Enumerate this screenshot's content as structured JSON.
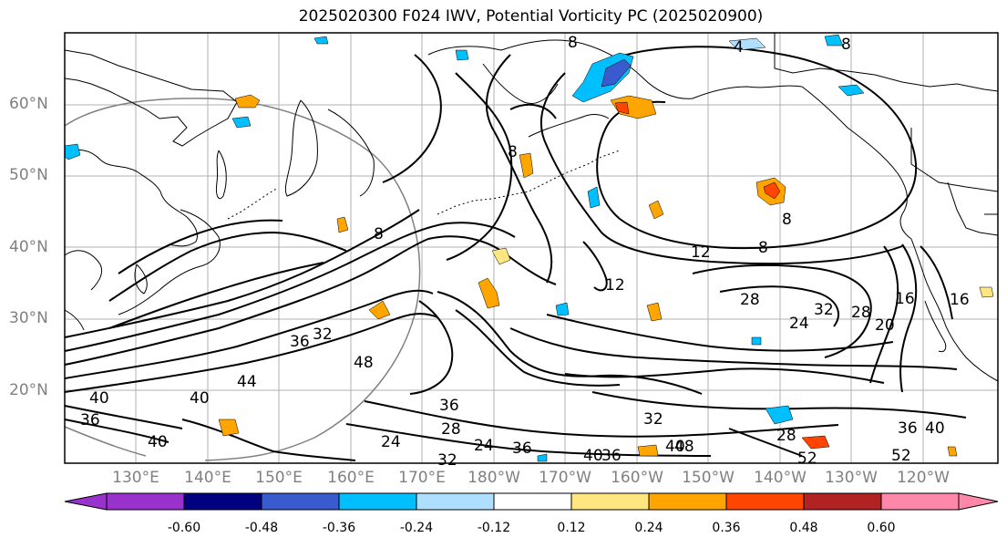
{
  "title": "2025020300 F024 IWV, Potential Vorticity PC (2025020900)",
  "lat_labels": [
    "60°N",
    "50°N",
    "40°N",
    "30°N",
    "20°N"
  ],
  "lon_labels": [
    "130°E",
    "140°E",
    "150°E",
    "160°E",
    "170°E",
    "180°W",
    "170°W",
    "160°W",
    "150°W",
    "140°W",
    "130°W",
    "120°W"
  ],
  "colorbar": {
    "ticks": [
      "-0.60",
      "-0.48",
      "-0.36",
      "-0.24",
      "-0.12",
      "0.12",
      "0.24",
      "0.36",
      "0.48",
      "0.60"
    ],
    "colors": [
      "#9932cc",
      "#000080",
      "#3a5bcd",
      "#00bfff",
      "#afdfff",
      "#ffffff",
      "#ffe680",
      "#ffa500",
      "#ff4500",
      "#b22222",
      "#ff88aa"
    ]
  },
  "contour_labels": [
    "8",
    "4",
    "8",
    "8",
    "8",
    "12",
    "12",
    "8",
    "8",
    "28",
    "32",
    "24",
    "28",
    "20",
    "16",
    "16",
    "36",
    "32",
    "48",
    "44",
    "40",
    "36",
    "28",
    "24",
    "32",
    "36",
    "40",
    "36",
    "24",
    "32",
    "40",
    "48",
    "28",
    "52",
    "36",
    "40",
    "52",
    "40",
    "36",
    "40"
  ]
}
